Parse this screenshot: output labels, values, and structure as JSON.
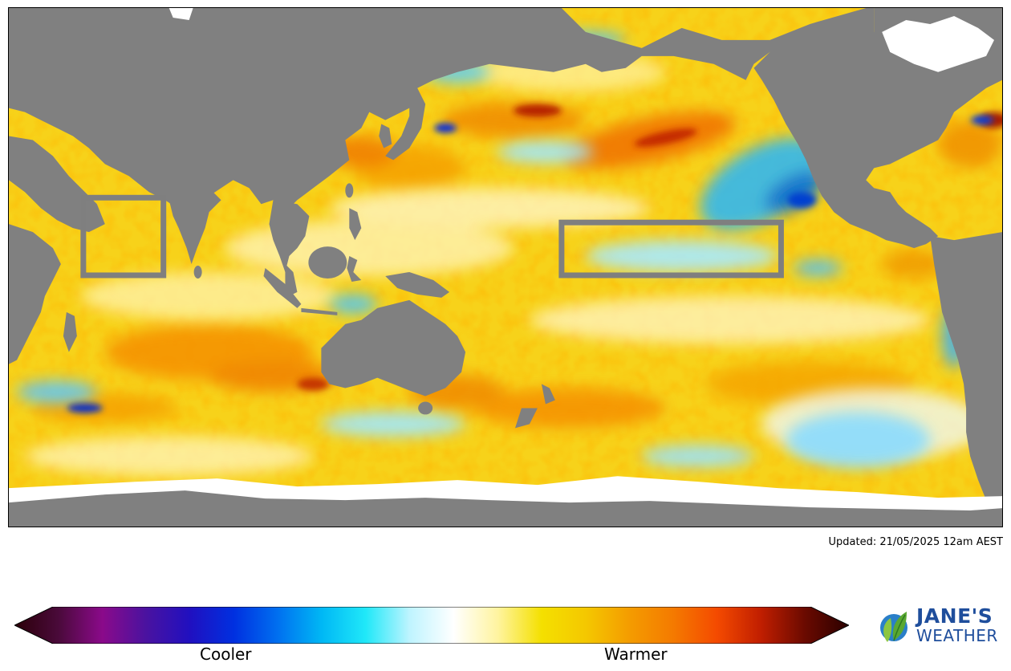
{
  "updated_text": "Updated: 21/05/2025 12am AEST",
  "colorbar": {
    "low_label": "Cooler",
    "high_label": "Warmer",
    "stops": [
      "#2b0008",
      "#4a0a3a",
      "#8a0a8a",
      "#4a12a0",
      "#2010c0",
      "#0030e0",
      "#0070f0",
      "#00b8f5",
      "#20e8f8",
      "#bff4ff",
      "#ffffff",
      "#fff4a0",
      "#f4e000",
      "#f4c800",
      "#f49c00",
      "#f47a00",
      "#f44a00",
      "#c01e00",
      "#6a0a00",
      "#2a0000"
    ]
  },
  "regions": [
    {
      "name": "western-indian-ocean-box"
    },
    {
      "name": "nino-3-4-box"
    }
  ],
  "colors": {
    "land": "#808080",
    "ice": "#ffffff",
    "box_outline": "#7f7f7f",
    "ocean_base": "#f7d21a"
  },
  "brand": {
    "line1": "JANE'S",
    "line2": "WEATHER",
    "color": "#1f4e9c"
  }
}
